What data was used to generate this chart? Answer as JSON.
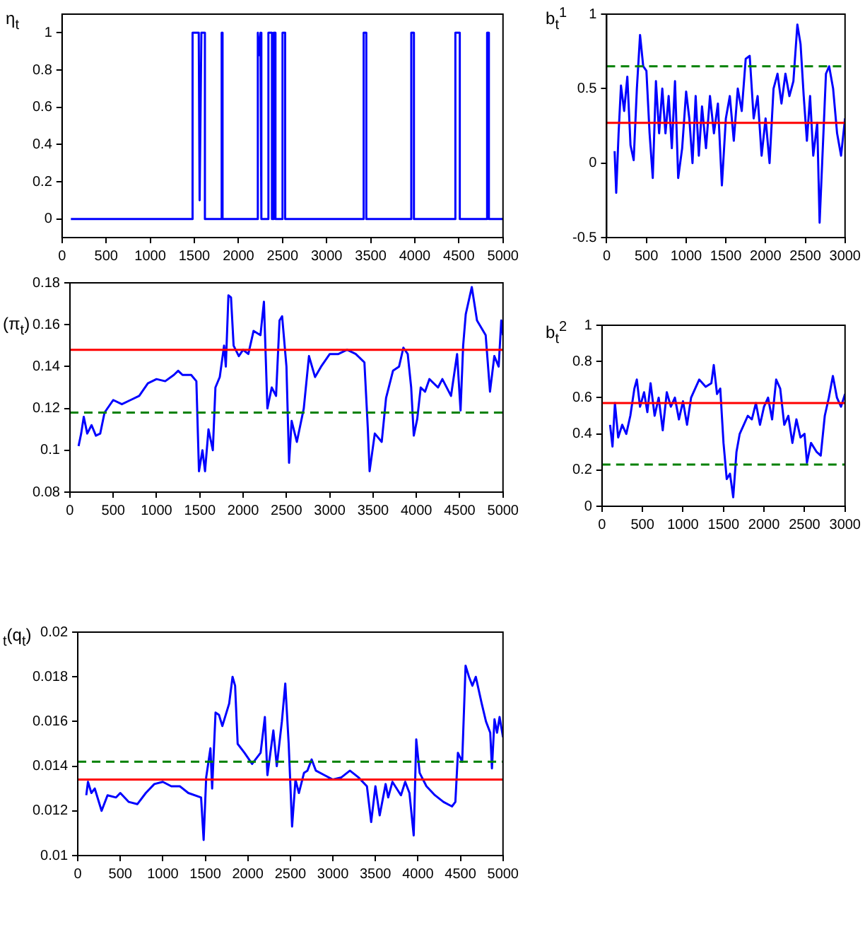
{
  "chart_data": [
    {
      "type": "line",
      "ylabel": "η$_{t}$",
      "grid": false,
      "marker": "none",
      "legend": false,
      "xlim": [
        0,
        5000
      ],
      "ylim": [
        -0.1,
        1.1
      ],
      "xticks": [
        0,
        500,
        1000,
        1500,
        2000,
        2500,
        3000,
        3500,
        4000,
        4500,
        5000
      ],
      "yticks": [
        0,
        0.2,
        0.4,
        0.6,
        0.8,
        1
      ],
      "series": [
        {
          "color": "#0000ff",
          "x": [
            100,
            1480,
            1480,
            1550,
            1560,
            1580,
            1620,
            1620,
            1810,
            1810,
            1820,
            1820,
            2220,
            2220,
            2240,
            2250,
            2260,
            2260,
            2340,
            2340,
            2380,
            2380,
            2400,
            2400,
            2420,
            2420,
            2500,
            2500,
            2530,
            2530,
            3420,
            3420,
            3450,
            3450,
            3960,
            3960,
            3990,
            3990,
            4460,
            4460,
            4510,
            4510,
            4820,
            4820,
            4840,
            4840,
            5000
          ],
          "values": [
            0,
            0,
            1,
            1,
            0.1,
            1,
            1,
            0,
            0,
            1,
            1,
            0,
            0,
            1,
            0.88,
            1,
            1,
            0,
            0,
            1,
            1,
            0,
            0,
            1,
            1,
            0,
            0,
            1,
            1,
            0,
            0,
            1,
            1,
            0,
            0,
            1,
            1,
            0,
            0,
            1,
            1,
            0,
            0,
            1,
            1,
            0,
            0
          ]
        }
      ]
    },
    {
      "type": "line",
      "ylabel": "b$_{t}$$^{1}$",
      "grid": false,
      "marker": "none",
      "legend": false,
      "xlim": [
        0,
        3000
      ],
      "ylim": [
        -0.5,
        1
      ],
      "xticks": [
        0,
        500,
        1000,
        1500,
        2000,
        2500,
        3000
      ],
      "yticks": [
        -0.5,
        0,
        0.5,
        1
      ],
      "ref_lines": [
        {
          "axis": "y",
          "value": 0.27,
          "color": "#ff0000",
          "line_style": "solid"
        },
        {
          "axis": "y",
          "value": 0.65,
          "color": "#008000",
          "line_style": "dashed"
        }
      ],
      "series": [
        {
          "color": "#0000ff",
          "x": [
            100,
            120,
            150,
            180,
            220,
            260,
            300,
            340,
            380,
            420,
            460,
            500,
            540,
            580,
            620,
            660,
            700,
            740,
            780,
            820,
            860,
            900,
            950,
            1000,
            1040,
            1080,
            1120,
            1160,
            1200,
            1250,
            1300,
            1350,
            1400,
            1450,
            1500,
            1550,
            1600,
            1650,
            1700,
            1750,
            1800,
            1850,
            1900,
            1950,
            2000,
            2050,
            2100,
            2150,
            2200,
            2250,
            2300,
            2350,
            2400,
            2440,
            2480,
            2520,
            2560,
            2600,
            2650,
            2680,
            2720,
            2760,
            2800,
            2850,
            2900,
            2950,
            3000
          ],
          "values": [
            0.08,
            -0.2,
            0.2,
            0.52,
            0.35,
            0.58,
            0.12,
            0.02,
            0.5,
            0.86,
            0.65,
            0.62,
            0.2,
            -0.1,
            0.55,
            0.2,
            0.5,
            0.2,
            0.45,
            0.1,
            0.55,
            -0.1,
            0.1,
            0.48,
            0.3,
            0,
            0.45,
            0.05,
            0.38,
            0.1,
            0.45,
            0.2,
            0.4,
            -0.15,
            0.3,
            0.45,
            0.15,
            0.5,
            0.35,
            0.7,
            0.72,
            0.3,
            0.45,
            0.05,
            0.3,
            0,
            0.5,
            0.6,
            0.4,
            0.6,
            0.45,
            0.55,
            0.93,
            0.8,
            0.45,
            0.15,
            0.45,
            0.05,
            0.27,
            -0.4,
            0.1,
            0.6,
            0.65,
            0.5,
            0.2,
            0.05,
            0.3
          ]
        }
      ]
    },
    {
      "type": "line",
      "ylabel": "(π$_{t}$)",
      "grid": false,
      "marker": "none",
      "legend": false,
      "xlim": [
        0,
        5000
      ],
      "ylim": [
        0.08,
        0.18
      ],
      "xticks": [
        0,
        500,
        1000,
        1500,
        2000,
        2500,
        3000,
        3500,
        4000,
        4500,
        5000
      ],
      "yticks": [
        0.08,
        0.1,
        0.12,
        0.14,
        0.16,
        0.18
      ],
      "ref_lines": [
        {
          "axis": "y",
          "value": 0.148,
          "color": "#ff0000",
          "line_style": "solid"
        },
        {
          "axis": "y",
          "value": 0.118,
          "color": "#008000",
          "line_style": "dashed"
        }
      ],
      "series": [
        {
          "color": "#0000ff",
          "x": [
            100,
            130,
            160,
            200,
            250,
            300,
            350,
            400,
            500,
            600,
            700,
            800,
            900,
            1000,
            1100,
            1200,
            1250,
            1300,
            1400,
            1460,
            1490,
            1530,
            1560,
            1600,
            1650,
            1680,
            1730,
            1780,
            1800,
            1830,
            1860,
            1890,
            1950,
            2000,
            2060,
            2120,
            2200,
            2240,
            2280,
            2330,
            2380,
            2420,
            2450,
            2500,
            2530,
            2560,
            2620,
            2700,
            2760,
            2830,
            2900,
            3000,
            3100,
            3200,
            3300,
            3400,
            3440,
            3460,
            3520,
            3600,
            3650,
            3730,
            3800,
            3850,
            3900,
            3940,
            3970,
            4010,
            4050,
            4100,
            4150,
            4250,
            4300,
            4400,
            4470,
            4510,
            4540,
            4570,
            4640,
            4700,
            4800,
            4850,
            4900,
            4950,
            4980,
            5000
          ],
          "values": [
            0.102,
            0.108,
            0.116,
            0.108,
            0.112,
            0.107,
            0.108,
            0.118,
            0.124,
            0.122,
            0.124,
            0.126,
            0.132,
            0.134,
            0.133,
            0.136,
            0.138,
            0.136,
            0.136,
            0.133,
            0.09,
            0.1,
            0.09,
            0.11,
            0.1,
            0.13,
            0.135,
            0.15,
            0.14,
            0.174,
            0.173,
            0.15,
            0.145,
            0.148,
            0.146,
            0.157,
            0.155,
            0.171,
            0.12,
            0.13,
            0.126,
            0.162,
            0.164,
            0.14,
            0.094,
            0.114,
            0.104,
            0.12,
            0.145,
            0.135,
            0.14,
            0.146,
            0.146,
            0.148,
            0.146,
            0.142,
            0.11,
            0.09,
            0.108,
            0.104,
            0.125,
            0.138,
            0.14,
            0.149,
            0.146,
            0.13,
            0.107,
            0.115,
            0.13,
            0.128,
            0.134,
            0.13,
            0.134,
            0.126,
            0.146,
            0.119,
            0.15,
            0.165,
            0.178,
            0.162,
            0.155,
            0.128,
            0.145,
            0.14,
            0.162,
            0.155
          ]
        }
      ]
    },
    {
      "type": "line",
      "ylabel": "b$_{t}$$^{2}$",
      "grid": false,
      "marker": "none",
      "legend": false,
      "xlim": [
        0,
        3000
      ],
      "ylim": [
        0,
        1
      ],
      "xticks": [
        0,
        500,
        1000,
        1500,
        2000,
        2500,
        3000
      ],
      "yticks": [
        0,
        0.2,
        0.4,
        0.6,
        0.8,
        1
      ],
      "ref_lines": [
        {
          "axis": "y",
          "value": 0.57,
          "color": "#ff0000",
          "line_style": "solid"
        },
        {
          "axis": "y",
          "value": 0.23,
          "color": "#008000",
          "line_style": "dashed"
        }
      ],
      "series": [
        {
          "color": "#0000ff",
          "x": [
            100,
            130,
            160,
            200,
            250,
            300,
            350,
            400,
            430,
            470,
            520,
            560,
            600,
            650,
            700,
            750,
            800,
            850,
            900,
            950,
            1000,
            1050,
            1100,
            1150,
            1200,
            1280,
            1350,
            1380,
            1420,
            1460,
            1500,
            1540,
            1580,
            1620,
            1660,
            1700,
            1750,
            1800,
            1850,
            1900,
            1950,
            2000,
            2050,
            2100,
            2150,
            2200,
            2250,
            2300,
            2350,
            2400,
            2450,
            2500,
            2530,
            2580,
            2650,
            2700,
            2750,
            2800,
            2850,
            2900,
            2950,
            3000
          ],
          "values": [
            0.45,
            0.33,
            0.57,
            0.38,
            0.45,
            0.4,
            0.5,
            0.65,
            0.7,
            0.55,
            0.63,
            0.52,
            0.68,
            0.5,
            0.6,
            0.42,
            0.63,
            0.55,
            0.6,
            0.48,
            0.58,
            0.45,
            0.6,
            0.65,
            0.7,
            0.66,
            0.68,
            0.78,
            0.62,
            0.65,
            0.35,
            0.15,
            0.18,
            0.05,
            0.3,
            0.4,
            0.45,
            0.5,
            0.48,
            0.57,
            0.45,
            0.55,
            0.6,
            0.48,
            0.7,
            0.65,
            0.45,
            0.5,
            0.35,
            0.48,
            0.38,
            0.4,
            0.24,
            0.35,
            0.3,
            0.28,
            0.5,
            0.6,
            0.72,
            0.6,
            0.55,
            0.62
          ]
        }
      ]
    },
    {
      "type": "line",
      "ylabel": "$_{t}$(q$_{t}$)",
      "grid": false,
      "marker": "none",
      "legend": false,
      "xlim": [
        0,
        5000
      ],
      "ylim": [
        0.01,
        0.02
      ],
      "xticks": [
        0,
        500,
        1000,
        1500,
        2000,
        2500,
        3000,
        3500,
        4000,
        4500,
        5000
      ],
      "yticks": [
        0.01,
        0.012,
        0.014,
        0.016,
        0.018,
        0.02
      ],
      "ref_lines": [
        {
          "axis": "y",
          "value": 0.0142,
          "color": "#008000",
          "line_style": "dashed"
        },
        {
          "axis": "y",
          "value": 0.0134,
          "color": "#ff0000",
          "line_style": "solid"
        }
      ],
      "series": [
        {
          "color": "#0000ff",
          "x": [
            100,
            120,
            160,
            200,
            280,
            350,
            450,
            500,
            600,
            700,
            800,
            900,
            1000,
            1100,
            1200,
            1300,
            1450,
            1480,
            1510,
            1560,
            1580,
            1620,
            1660,
            1700,
            1780,
            1820,
            1850,
            1880,
            1960,
            2050,
            2150,
            2200,
            2230,
            2300,
            2340,
            2400,
            2440,
            2480,
            2520,
            2560,
            2600,
            2660,
            2700,
            2750,
            2800,
            2900,
            3000,
            3100,
            3200,
            3300,
            3400,
            3450,
            3500,
            3550,
            3620,
            3650,
            3700,
            3800,
            3850,
            3900,
            3950,
            3980,
            4020,
            4100,
            4200,
            4300,
            4400,
            4440,
            4470,
            4520,
            4560,
            4600,
            4640,
            4680,
            4750,
            4800,
            4850,
            4870,
            4900,
            4930,
            4960,
            5000
          ],
          "values": [
            0.0127,
            0.0133,
            0.0128,
            0.013,
            0.012,
            0.0127,
            0.0126,
            0.0128,
            0.0124,
            0.0123,
            0.0128,
            0.0132,
            0.0133,
            0.0131,
            0.0131,
            0.0128,
            0.0126,
            0.0107,
            0.0135,
            0.0148,
            0.013,
            0.0164,
            0.0163,
            0.0158,
            0.0168,
            0.018,
            0.0176,
            0.015,
            0.0146,
            0.0141,
            0.0146,
            0.0162,
            0.0136,
            0.0156,
            0.014,
            0.016,
            0.0177,
            0.015,
            0.0113,
            0.0134,
            0.0128,
            0.0137,
            0.0138,
            0.0143,
            0.0138,
            0.0136,
            0.0134,
            0.0135,
            0.0138,
            0.0135,
            0.0131,
            0.0115,
            0.0131,
            0.0118,
            0.0132,
            0.0126,
            0.0133,
            0.0127,
            0.0133,
            0.0128,
            0.0109,
            0.0152,
            0.0137,
            0.0131,
            0.0127,
            0.0124,
            0.0122,
            0.0124,
            0.0146,
            0.0142,
            0.0185,
            0.018,
            0.0176,
            0.018,
            0.0168,
            0.016,
            0.0155,
            0.0139,
            0.0161,
            0.0155,
            0.0162,
            0.0153
          ]
        }
      ]
    }
  ]
}
